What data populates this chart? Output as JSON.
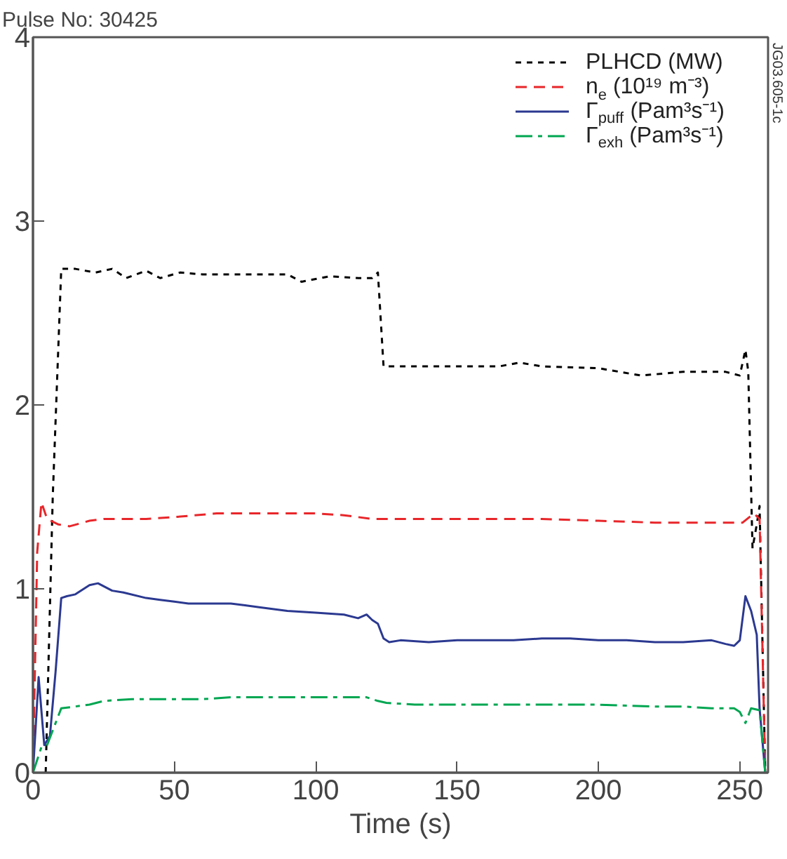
{
  "chart_data": {
    "type": "line",
    "title": "Pulse No: 30425",
    "xlabel": "Time (s)",
    "xlim": [
      0,
      260
    ],
    "ylim": [
      0,
      4
    ],
    "xticks": [
      0,
      50,
      100,
      150,
      200,
      250
    ],
    "yticks": [
      0,
      1,
      2,
      3,
      4
    ],
    "grid": false,
    "legend": "top right",
    "marker": "none",
    "annotations": [
      "JG03.605-1c"
    ],
    "series": [
      {
        "name": "PLHCD (MW)",
        "color": "#000000",
        "line_style": "dotted",
        "x": [
          4.5,
          7,
          10,
          15,
          22,
          28,
          33,
          40,
          45,
          52,
          60,
          70,
          80,
          90,
          95,
          105,
          115,
          120,
          122,
          124,
          135,
          150,
          165,
          172,
          180,
          200,
          215,
          230,
          245,
          250,
          252,
          253,
          254.5,
          256,
          257,
          259
        ],
        "values": [
          0,
          1.5,
          2.74,
          2.74,
          2.72,
          2.74,
          2.69,
          2.73,
          2.69,
          2.72,
          2.71,
          2.71,
          2.71,
          2.71,
          2.67,
          2.7,
          2.69,
          2.69,
          2.72,
          2.21,
          2.21,
          2.21,
          2.21,
          2.23,
          2.21,
          2.2,
          2.16,
          2.18,
          2.18,
          2.16,
          2.3,
          2.18,
          1.22,
          1.35,
          1.45,
          0
        ]
      },
      {
        "name": "n$_{e}$ (10¹⁹ m⁻³)",
        "color": "#e8262a",
        "line_style": "dashed",
        "x": [
          0,
          1.5,
          3,
          5,
          9,
          13,
          20,
          25,
          40,
          50,
          65,
          80,
          100,
          110,
          120,
          130,
          150,
          180,
          200,
          220,
          240,
          251,
          255,
          257,
          259
        ],
        "values": [
          0,
          1.2,
          1.47,
          1.38,
          1.35,
          1.34,
          1.37,
          1.38,
          1.38,
          1.39,
          1.41,
          1.41,
          1.41,
          1.4,
          1.38,
          1.38,
          1.38,
          1.38,
          1.37,
          1.36,
          1.36,
          1.36,
          1.41,
          1.38,
          0
        ]
      },
      {
        "name": "Γ$_{puff}$ (Pam³s⁻¹)",
        "color": "#2b3990",
        "line_style": "solid",
        "x": [
          0,
          2,
          4,
          6,
          8,
          10,
          12,
          15,
          20,
          23,
          28,
          32,
          40,
          45,
          50,
          55,
          60,
          70,
          75,
          80,
          90,
          100,
          110,
          115,
          118,
          120,
          122,
          124,
          126,
          130,
          140,
          150,
          160,
          170,
          180,
          190,
          200,
          210,
          220,
          230,
          240,
          245,
          248,
          250,
          252,
          254,
          256,
          257,
          259
        ],
        "values": [
          0,
          0.52,
          0.15,
          0.2,
          0.55,
          0.95,
          0.96,
          0.97,
          1.02,
          1.03,
          0.99,
          0.98,
          0.95,
          0.94,
          0.93,
          0.92,
          0.92,
          0.92,
          0.91,
          0.9,
          0.88,
          0.87,
          0.86,
          0.84,
          0.86,
          0.83,
          0.81,
          0.73,
          0.71,
          0.72,
          0.71,
          0.72,
          0.72,
          0.72,
          0.73,
          0.73,
          0.72,
          0.72,
          0.71,
          0.71,
          0.72,
          0.7,
          0.69,
          0.72,
          0.96,
          0.88,
          0.75,
          0.35,
          0
        ]
      },
      {
        "name": "Γ$_{exh}$ (Pam³s⁻¹)",
        "color": "#00a651",
        "line_style": "dashdot",
        "x": [
          0,
          3,
          5,
          8,
          10,
          15,
          20,
          25,
          35,
          50,
          60,
          70,
          80,
          100,
          118,
          122,
          125,
          135,
          150,
          180,
          200,
          220,
          230,
          240,
          248,
          250,
          252,
          254,
          257,
          259
        ],
        "values": [
          0,
          0.14,
          0.15,
          0.27,
          0.35,
          0.36,
          0.37,
          0.39,
          0.4,
          0.4,
          0.4,
          0.41,
          0.41,
          0.41,
          0.41,
          0.39,
          0.38,
          0.37,
          0.37,
          0.37,
          0.37,
          0.36,
          0.36,
          0.35,
          0.35,
          0.33,
          0.27,
          0.35,
          0.34,
          0
        ]
      }
    ]
  }
}
